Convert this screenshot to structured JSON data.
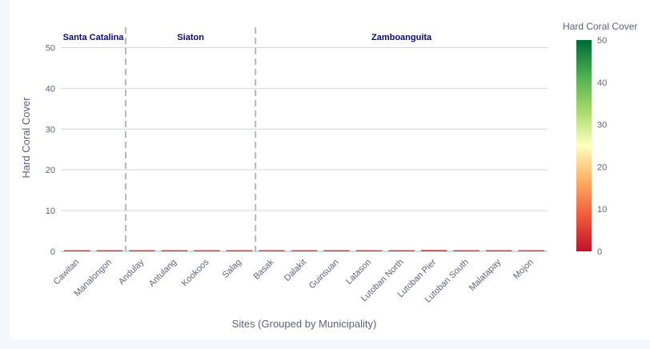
{
  "chart_data": {
    "type": "bar",
    "xlabel": "Sites (Grouped by Municipality)",
    "ylabel": "Hard Coral Cover",
    "ylim": [
      0,
      55
    ],
    "yticks": [
      0,
      10,
      20,
      30,
      40,
      50
    ],
    "grid": true,
    "categories": [
      "Cawitan",
      "Manalongon",
      "Andulay",
      "Antulang",
      "Kookoos",
      "Salag",
      "Basak",
      "Dalakit",
      "Guinsuan",
      "Latason",
      "Lutoban North",
      "Lutoban Pier",
      "Lutoban South",
      "Malatapay",
      "Mojon"
    ],
    "values": [
      0.15,
      0.15,
      0.2,
      0.2,
      0.3,
      0.25,
      0.1,
      0.12,
      0.05,
      0.1,
      0.1,
      0.35,
      0.05,
      0.1,
      0.1
    ],
    "groups": [
      {
        "name": "Santa Catalina",
        "start": 0,
        "end": 1
      },
      {
        "name": "Siaton",
        "start": 2,
        "end": 5
      },
      {
        "name": "Zamboanguita",
        "start": 6,
        "end": 14
      }
    ],
    "colorbar": {
      "title": "Hard Coral Cover",
      "range": [
        0,
        50
      ],
      "ticks": [
        0,
        10,
        20,
        30,
        40,
        50
      ],
      "colors": [
        "#c0102a",
        "#f05a3c",
        "#fdae61",
        "#ffffbf",
        "#a6d96a",
        "#4caf50",
        "#006837"
      ]
    }
  }
}
